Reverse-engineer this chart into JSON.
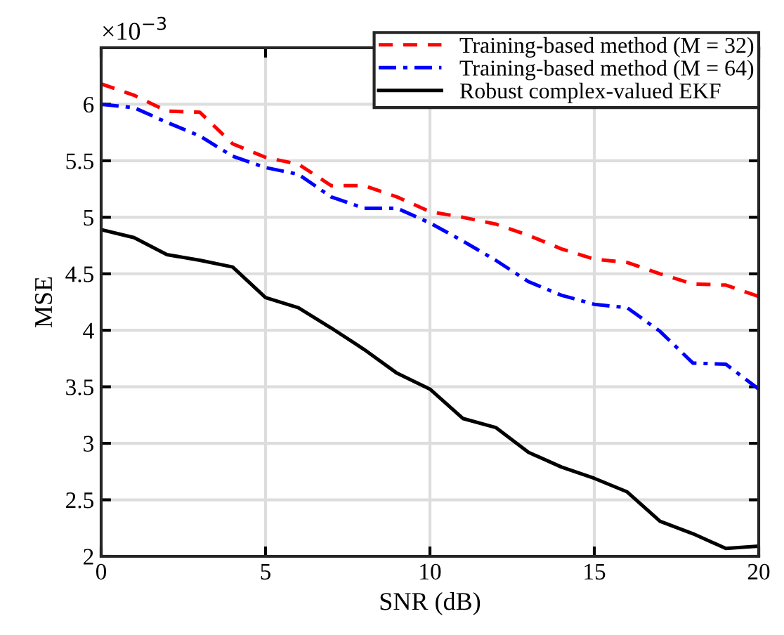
{
  "chart_data": {
    "type": "line",
    "xlabel": "SNR (dB)",
    "ylabel": "MSE",
    "annotations": [
      "×10$^{−3}$"
    ],
    "x": [
      0,
      1,
      2,
      3,
      4,
      5,
      6,
      7,
      8,
      9,
      10,
      11,
      12,
      13,
      14,
      15,
      16,
      17,
      18,
      19,
      20
    ],
    "series": [
      {
        "name": "Training-based method (M = 32)",
        "color": "#ff0000",
        "line_style": "dashed",
        "values": [
          6.18,
          6.08,
          5.94,
          5.93,
          5.65,
          5.53,
          5.47,
          5.28,
          5.28,
          5.18,
          5.05,
          5.0,
          4.94,
          4.84,
          4.72,
          4.63,
          4.6,
          4.5,
          4.41,
          4.4,
          4.3
        ]
      },
      {
        "name": "Training-based method (M = 64)",
        "color": "#0000ff",
        "line_style": "dashdot",
        "values": [
          6.0,
          5.97,
          5.84,
          5.72,
          5.54,
          5.44,
          5.38,
          5.18,
          5.08,
          5.08,
          4.95,
          4.79,
          4.62,
          4.43,
          4.31,
          4.23,
          4.2,
          3.99,
          3.71,
          3.7,
          3.48
        ]
      },
      {
        "name": "Robust complex-valued EKF",
        "color": "#000000",
        "line_style": "solid",
        "values": [
          4.89,
          4.82,
          4.67,
          4.62,
          4.56,
          4.29,
          4.2,
          4.02,
          3.83,
          3.62,
          3.48,
          3.22,
          3.14,
          2.92,
          2.79,
          2.69,
          2.57,
          2.31,
          2.2,
          2.07,
          2.09
        ]
      }
    ],
    "xlim": [
      0,
      20
    ],
    "ylim": [
      2,
      6.5
    ],
    "xticks": [
      0,
      5,
      10,
      15,
      20
    ],
    "yticks": [
      2,
      2.5,
      3,
      3.5,
      4,
      4.5,
      5,
      5.5,
      6
    ],
    "grid": true,
    "legend": "top right",
    "marker": "none"
  }
}
